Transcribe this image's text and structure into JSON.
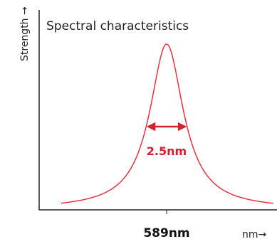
{
  "chart_data": {
    "type": "line",
    "title": "Spectral characteristics",
    "ylabel": "Strength →",
    "xlabel": "nm→",
    "x_ticks": [
      "589nm"
    ],
    "series": [
      {
        "peak_x": 589,
        "fwhm": 2.5,
        "color": "#e8333f"
      }
    ],
    "annotation": {
      "text": "2.5nm",
      "color": "#d4202f"
    },
    "grid": false,
    "legend": "none"
  }
}
